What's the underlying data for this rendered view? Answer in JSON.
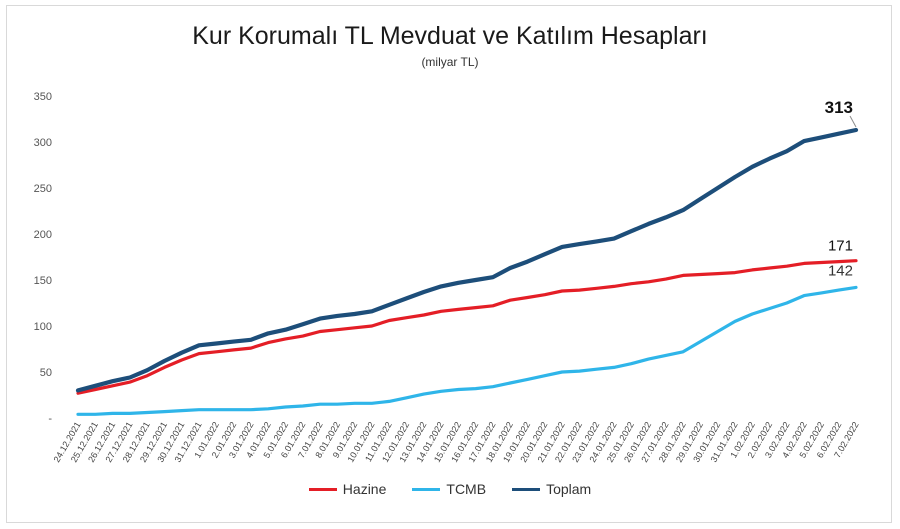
{
  "chart_data": {
    "type": "line",
    "title": "Kur Korumalı TL Mevduat ve Katılım Hesapları",
    "subtitle": "(milyar TL)",
    "xlabel": "",
    "ylabel": "",
    "ylim": [
      0,
      350
    ],
    "yticks": [
      "350",
      "300",
      "250",
      "200",
      "150",
      "100",
      "50",
      "-"
    ],
    "grid": false,
    "legend_position": "bottom",
    "categories": [
      "24.12.2021",
      "25.12.2021",
      "26.12.2021",
      "27.12.2021",
      "28.12.2021",
      "29.12.2021",
      "30.12.2021",
      "31.12.2021",
      "1.01.2022",
      "2.01.2022",
      "3.01.2022",
      "4.01.2022",
      "5.01.2022",
      "6.01.2022",
      "7.01.2022",
      "8.01.2022",
      "9.01.2022",
      "10.01.2022",
      "11.01.2022",
      "12.01.2022",
      "13.01.2022",
      "14.01.2022",
      "15.01.2022",
      "16.01.2022",
      "17.01.2022",
      "18.01.2022",
      "19.01.2022",
      "20.01.2022",
      "21.01.2022",
      "22.01.2022",
      "23.01.2022",
      "24.01.2022",
      "25.01.2022",
      "26.01.2022",
      "27.01.2022",
      "28.01.2022",
      "29.01.2022",
      "30.01.2022",
      "31.01.2022",
      "1.02.2022",
      "2.02.2022",
      "3.02.2022",
      "4.02.2022",
      "5.02.2022",
      "6.02.2022",
      "7.02.2022"
    ],
    "series": [
      {
        "name": "Hazine",
        "color": "#e41e26",
        "values": [
          27,
          31,
          35,
          39,
          46,
          55,
          63,
          70,
          72,
          74,
          76,
          82,
          86,
          89,
          94,
          96,
          98,
          100,
          106,
          109,
          112,
          116,
          118,
          120,
          122,
          128,
          131,
          134,
          138,
          139,
          141,
          143,
          146,
          148,
          151,
          155,
          156,
          157,
          158,
          161,
          163,
          165,
          168,
          169,
          170,
          171
        ],
        "end_label": "171"
      },
      {
        "name": "TCMB",
        "color": "#2fb5e9",
        "values": [
          4,
          4,
          5,
          5,
          6,
          7,
          8,
          9,
          9,
          9,
          9,
          10,
          12,
          13,
          15,
          15,
          16,
          16,
          18,
          22,
          26,
          29,
          31,
          32,
          34,
          38,
          42,
          46,
          50,
          51,
          53,
          55,
          59,
          64,
          68,
          72,
          83,
          94,
          105,
          113,
          119,
          125,
          133,
          136,
          139,
          142
        ],
        "end_label": "142"
      },
      {
        "name": "Toplam",
        "color": "#1d4e7a",
        "values": [
          30,
          35,
          40,
          44,
          52,
          62,
          71,
          79,
          81,
          83,
          85,
          92,
          96,
          102,
          108,
          111,
          113,
          116,
          123,
          130,
          137,
          143,
          147,
          150,
          153,
          163,
          170,
          178,
          186,
          189,
          192,
          195,
          203,
          211,
          218,
          226,
          238,
          250,
          262,
          273,
          282,
          290,
          301,
          305,
          309,
          313
        ],
        "end_label": "313"
      }
    ]
  }
}
